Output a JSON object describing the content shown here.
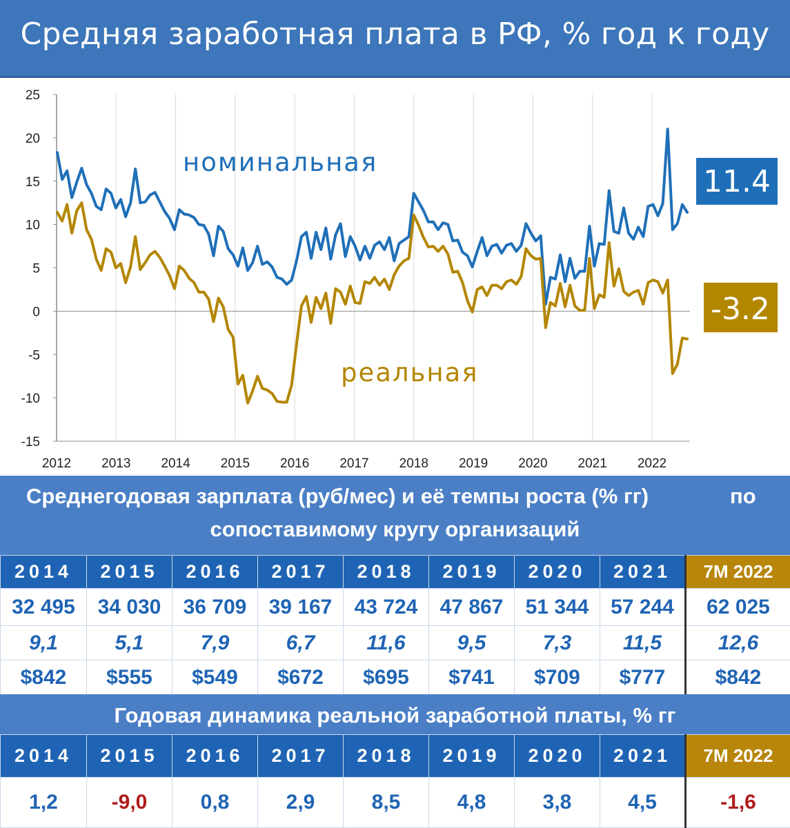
{
  "title": "Средняя заработная плата в РФ, % год к году",
  "chart_data": {
    "type": "line",
    "ylim": [
      -15,
      25
    ],
    "yticks": [
      "25",
      "20",
      "15",
      "10",
      "5",
      "0",
      "-5",
      "-10",
      "-15"
    ],
    "xticks": [
      "2012",
      "2013",
      "2014",
      "2015",
      "2016",
      "2017",
      "2018",
      "2019",
      "2020",
      "2021",
      "2022"
    ],
    "grid": "vertical",
    "series": [
      {
        "name": "номинальная",
        "color": "#1f6fb8",
        "label_color": "#1f6fb8",
        "last_value": "11.4",
        "values": [
          18.3,
          15.2,
          16.2,
          13.1,
          14.9,
          16.5,
          14.6,
          13.6,
          12.1,
          11.7,
          14.1,
          13.6,
          11.9,
          12.9,
          10.9,
          12.5,
          16.4,
          12.5,
          12.6,
          13.4,
          13.7,
          12.6,
          11.5,
          10.7,
          9.4,
          11.7,
          11.2,
          11.1,
          10.8,
          10.0,
          9.9,
          8.9,
          6.4,
          9.8,
          9.2,
          7.2,
          6.5,
          5.2,
          7.3,
          4.7,
          5.6,
          7.5,
          5.4,
          5.7,
          5.1,
          3.9,
          3.7,
          3.1,
          3.6,
          5.8,
          8.6,
          9.1,
          6.1,
          9.1,
          7.1,
          9.6,
          6.0,
          8.8,
          10.1,
          6.3,
          8.6,
          7.5,
          5.9,
          7.5,
          6.1,
          7.6,
          8.0,
          7.1,
          8.5,
          5.8,
          7.8,
          8.2,
          8.6,
          13.6,
          12.6,
          11.6,
          10.3,
          10.3,
          9.4,
          10.2,
          10.0,
          8.1,
          8.2,
          6.8,
          6.4,
          5.1,
          6.9,
          8.5,
          6.4,
          7.5,
          7.7,
          6.7,
          7.6,
          7.8,
          6.9,
          7.6,
          10.1,
          9.0,
          8.1,
          8.7,
          0.8,
          3.9,
          3.7,
          6.5,
          3.4,
          6.1,
          3.8,
          4.6,
          4.6,
          9.8,
          5.2,
          7.8,
          7.7,
          13.9,
          9.2,
          9.0,
          11.9,
          9.0,
          8.3,
          9.7,
          8.6,
          12.1,
          12.3,
          11.0,
          12.4,
          21.0,
          9.4,
          10.1,
          12.3,
          11.4
        ]
      },
      {
        "name": "реальная",
        "color": "#b38600",
        "label_color": "#b38600",
        "last_value": "-3.2",
        "values": [
          11.4,
          10.4,
          12.3,
          9.0,
          11.6,
          12.5,
          9.4,
          8.3,
          6.0,
          4.7,
          7.2,
          6.8,
          5.0,
          5.5,
          3.3,
          5.1,
          8.6,
          4.8,
          5.6,
          6.5,
          6.9,
          6.2,
          5.2,
          4.1,
          2.6,
          5.2,
          4.7,
          3.8,
          3.3,
          2.2,
          2.2,
          1.4,
          -1.2,
          1.5,
          0.5,
          -2.1,
          -3.0,
          -8.4,
          -7.4,
          -10.6,
          -9.2,
          -7.5,
          -8.9,
          -9.1,
          -9.5,
          -10.4,
          -10.5,
          -10.5,
          -8.5,
          -3.8,
          0.6,
          1.7,
          -1.3,
          1.6,
          0.3,
          2.1,
          -1.4,
          2.6,
          2.2,
          0.8,
          2.9,
          1.0,
          0.9,
          3.4,
          3.2,
          3.9,
          3.0,
          3.7,
          2.5,
          4.2,
          5.2,
          5.8,
          6.1,
          11.1,
          9.9,
          8.5,
          7.4,
          7.5,
          6.9,
          7.5,
          6.6,
          4.5,
          4.6,
          3.3,
          1.2,
          -0.1,
          2.5,
          2.8,
          1.8,
          3.0,
          3.0,
          2.6,
          3.4,
          3.6,
          3.1,
          4.0,
          7.2,
          6.4,
          6.0,
          6.1,
          -1.9,
          1.0,
          0.6,
          3.2,
          0.5,
          3.0,
          0.6,
          0.1,
          0.1,
          6.1,
          0.3,
          1.9,
          1.6,
          7.9,
          2.9,
          4.9,
          2.3,
          1.8,
          2.2,
          2.4,
          0.8,
          3.3,
          3.6,
          3.4,
          2.1,
          3.6,
          -7.2,
          -6.1,
          -3.1,
          -3.2
        ]
      }
    ],
    "annotations": [
      "номинальная",
      "реальная"
    ]
  },
  "table1": {
    "heading_line1": "Среднегодовая зарплата (руб/мес) и её темпы роста (% гг)",
    "heading_tail": "по",
    "heading_line2": "сопоставимому кругу организаций",
    "years": [
      "2014",
      "2015",
      "2016",
      "2017",
      "2018",
      "2019",
      "2020",
      "2021",
      "7M 2022"
    ],
    "wages": [
      "32 495",
      "34 030",
      "36 709",
      "39 167",
      "43 724",
      "47 867",
      "51 344",
      "57 244",
      "62 025"
    ],
    "growth": [
      "9,1",
      "5,1",
      "7,9",
      "6,7",
      "11,6",
      "9,5",
      "7,3",
      "11,5",
      "12,6"
    ],
    "usd": [
      "$842",
      "$555",
      "$549",
      "$672",
      "$695",
      "$741",
      "$709",
      "$777",
      "$842"
    ]
  },
  "table2": {
    "heading": "Годовая динамика реальной заработной платы, % гг",
    "years": [
      "2014",
      "2015",
      "2016",
      "2017",
      "2018",
      "2019",
      "2020",
      "2021",
      "7M 2022"
    ],
    "values": [
      "1,2",
      "-9,0",
      "0,8",
      "2,9",
      "8,5",
      "4,8",
      "3,8",
      "4,5",
      "-1,6"
    ]
  }
}
